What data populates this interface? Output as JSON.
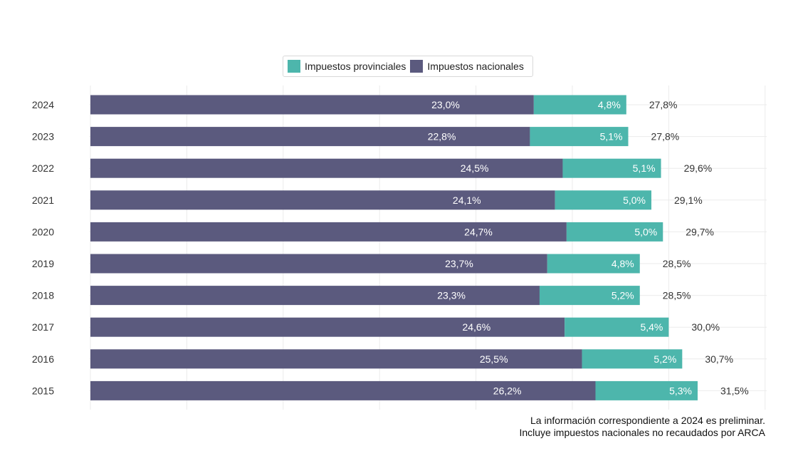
{
  "chart_data": {
    "type": "bar",
    "orientation": "horizontal",
    "stacked": true,
    "categories": [
      "2024",
      "2023",
      "2022",
      "2021",
      "2020",
      "2019",
      "2018",
      "2017",
      "2016",
      "2015"
    ],
    "series": [
      {
        "name": "Impuestos nacionales",
        "color": "#5b5a7e",
        "values": [
          23.0,
          22.8,
          24.5,
          24.1,
          24.7,
          23.7,
          23.3,
          24.6,
          25.5,
          26.2
        ],
        "labels": [
          "23,0%",
          "22,8%",
          "24,5%",
          "24,1%",
          "24,7%",
          "23,7%",
          "23,3%",
          "24,6%",
          "25,5%",
          "26,2%"
        ]
      },
      {
        "name": "Impuestos provinciales",
        "color": "#4db6ac",
        "values": [
          4.8,
          5.1,
          5.1,
          5.0,
          5.0,
          4.8,
          5.2,
          5.4,
          5.2,
          5.3
        ],
        "labels": [
          "4,8%",
          "5,1%",
          "5,1%",
          "5,0%",
          "5,0%",
          "4,8%",
          "5,2%",
          "5,4%",
          "5,2%",
          "5,3%"
        ]
      }
    ],
    "totals": {
      "values": [
        27.8,
        27.8,
        29.6,
        29.1,
        29.7,
        28.5,
        28.5,
        30.0,
        30.7,
        31.5
      ],
      "labels": [
        "27,8%",
        "27,8%",
        "29,6%",
        "29,1%",
        "29,7%",
        "28,5%",
        "28,5%",
        "30,0%",
        "30,7%",
        "31,5%"
      ]
    },
    "xlim": [
      0,
      35
    ],
    "grid": true,
    "legend_position": "top"
  },
  "legend": {
    "items": [
      {
        "label": "Impuestos provinciales",
        "color": "#4db6ac"
      },
      {
        "label": "Impuestos nacionales",
        "color": "#5b5a7e"
      }
    ]
  },
  "note": {
    "line1": "La información correspondiente a 2024 es preliminar.",
    "line2": "Incluye impuestos nacionales no recaudados por ARCA"
  }
}
